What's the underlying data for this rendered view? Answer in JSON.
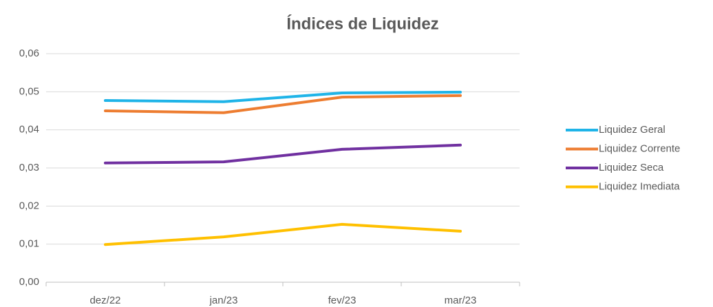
{
  "chart_data": {
    "type": "line",
    "title": "Índices de Liquidez",
    "categories": [
      "dez/22",
      "jan/23",
      "fev/23",
      "mar/23"
    ],
    "series": [
      {
        "name": "Liquidez Geral",
        "color": "#1fb4e8",
        "values": [
          0.0477,
          0.0474,
          0.0497,
          0.0499
        ]
      },
      {
        "name": "Liquidez Corrente",
        "color": "#ed7d31",
        "values": [
          0.045,
          0.0445,
          0.0486,
          0.049
        ]
      },
      {
        "name": "Liquidez Seca",
        "color": "#7030a0",
        "values": [
          0.0313,
          0.0316,
          0.0349,
          0.036
        ]
      },
      {
        "name": "Liquidez Imediata",
        "color": "#ffc000",
        "values": [
          0.0099,
          0.0119,
          0.0152,
          0.0134
        ]
      }
    ],
    "ylim": [
      0,
      0.06
    ],
    "yticks": [
      {
        "value": 0,
        "label": "0,00"
      },
      {
        "value": 0.01,
        "label": "0,01"
      },
      {
        "value": 0.02,
        "label": "0,02"
      },
      {
        "value": 0.03,
        "label": "0,03"
      },
      {
        "value": 0.04,
        "label": "0,04"
      },
      {
        "value": 0.05,
        "label": "0,05"
      },
      {
        "value": 0.06,
        "label": "0,06"
      }
    ],
    "grid": true,
    "legend": "right"
  }
}
